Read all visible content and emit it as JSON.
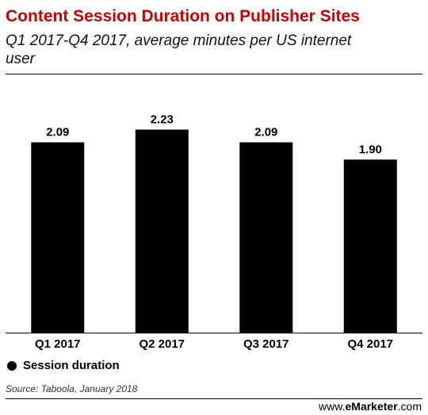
{
  "header": {
    "title": "Content Session Duration on Publisher Sites",
    "subtitle": "Q1 2017-Q4 2017, average minutes per US internet user"
  },
  "colors": {
    "title": "#cc0000",
    "bar": "#000000"
  },
  "legend": {
    "label": "Session duration"
  },
  "footer": {
    "source": "Source: Taboola, January 2018",
    "brand_prefix": "www.",
    "brand_name": "eMarketer",
    "brand_suffix": ".com"
  },
  "chart_data": {
    "type": "bar",
    "categories": [
      "Q1 2017",
      "Q2 2017",
      "Q3 2017",
      "Q4 2017"
    ],
    "series": [
      {
        "name": "Session duration",
        "values": [
          2.09,
          2.23,
          2.09,
          1.9
        ],
        "labels": [
          "2.09",
          "2.23",
          "2.09",
          "1.90"
        ]
      }
    ],
    "title": "Content Session Duration on Publisher Sites",
    "subtitle": "Q1 2017-Q4 2017, average minutes per US internet user",
    "xlabel": "",
    "ylabel": "",
    "ylim": [
      0,
      2.5
    ],
    "grid": false,
    "legend_position": "bottom-left"
  }
}
